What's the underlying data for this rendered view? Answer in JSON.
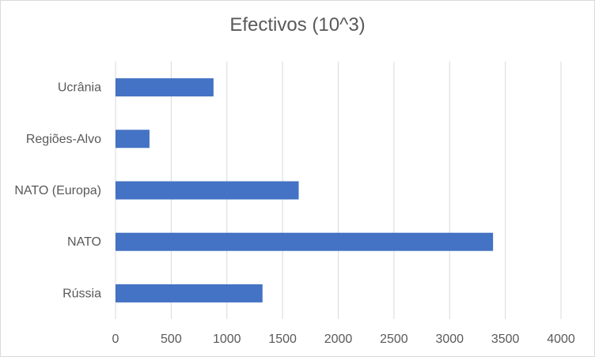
{
  "chart_data": {
    "type": "bar",
    "orientation": "horizontal",
    "title": "Efectivos (10^3)",
    "categories": [
      "Ucrânia",
      "Regiões-Alvo",
      "NATO (Europa)",
      "NATO",
      "Rússia"
    ],
    "values": [
      880,
      305,
      1645,
      3390,
      1320
    ],
    "xlim": [
      0,
      4000
    ],
    "ticks": [
      0,
      500,
      1000,
      1500,
      2000,
      2500,
      3000,
      3500,
      4000
    ],
    "tick_labels": [
      "0",
      "500",
      "1000",
      "1500",
      "2000",
      "2500",
      "3000",
      "3500",
      "4000"
    ],
    "xlabel": "",
    "ylabel": "",
    "grid": "vertical",
    "legend": "none",
    "bar_color": "#4472c4",
    "grid_color": "#d9d9d9"
  }
}
